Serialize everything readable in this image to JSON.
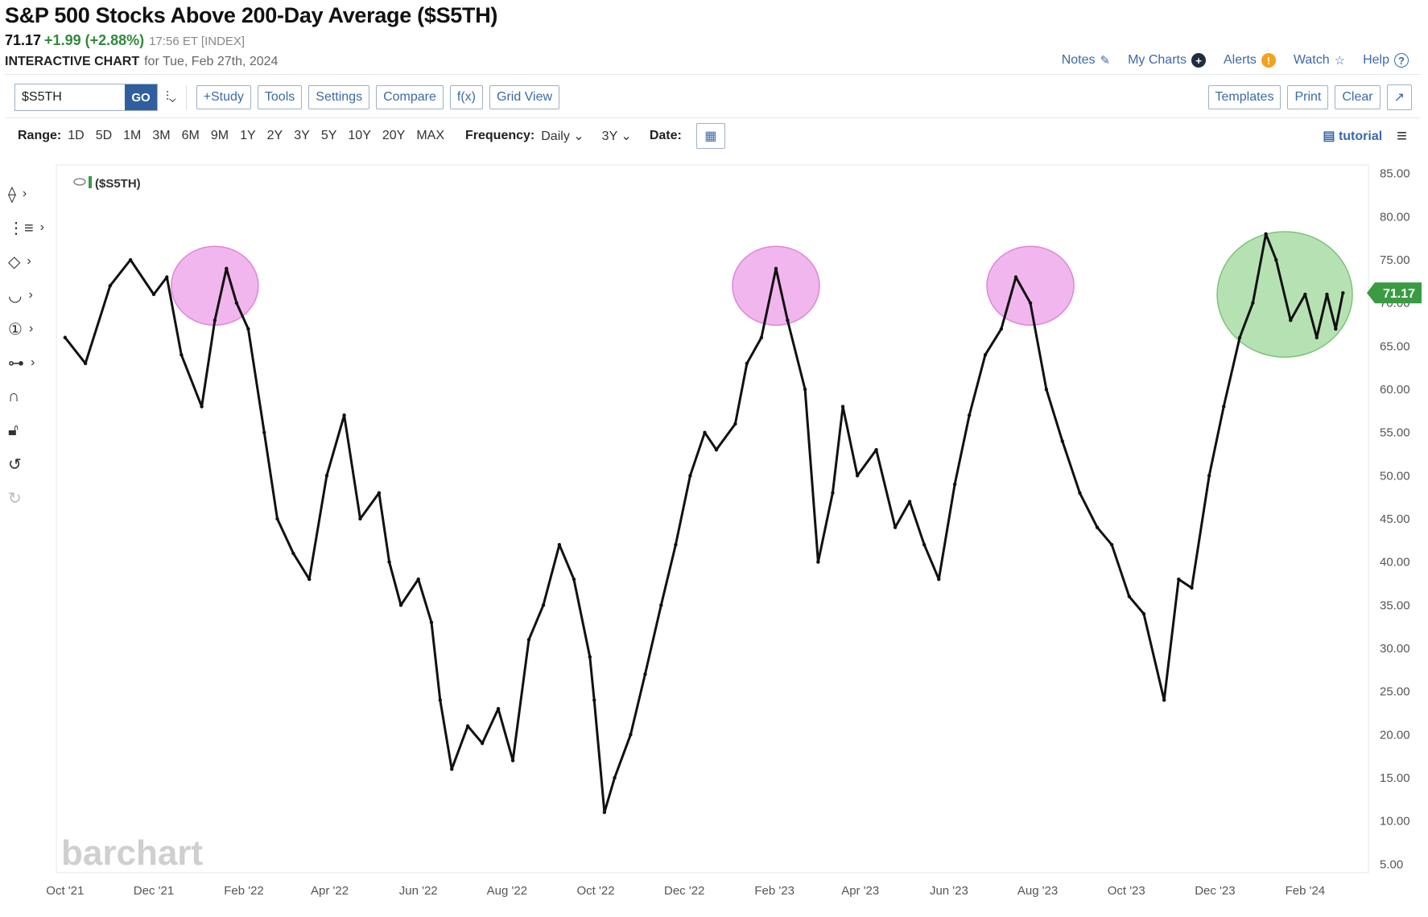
{
  "header": {
    "title": "S&P 500 Stocks Above 200-Day Average ($S5TH)",
    "last": "71.17",
    "change": "+1.99 (+2.88%)",
    "time": "17:56 ET [INDEX]",
    "subtitle_label": "INTERACTIVE CHART",
    "subtitle_date": "for Tue, Feb 27th, 2024"
  },
  "top_links": [
    {
      "label": "Notes",
      "icon": "pencil-icon"
    },
    {
      "label": "My Charts",
      "icon": "plus-circle-icon"
    },
    {
      "label": "Alerts",
      "icon": "alert-icon"
    },
    {
      "label": "Watch",
      "icon": "star-icon"
    },
    {
      "label": "Help",
      "icon": "question-icon"
    }
  ],
  "toolbar": {
    "symbol_value": "$S5TH",
    "go_label": "GO",
    "chart_type_icon": "candlestick-icon",
    "buttons_left": [
      "+Study",
      "Tools",
      "Settings",
      "Compare",
      "f(x)",
      "Grid View"
    ],
    "buttons_right": [
      "Templates",
      "Print",
      "Clear"
    ],
    "expand_icon": "expand-icon"
  },
  "range_bar": {
    "range_label": "Range:",
    "ranges": [
      "1D",
      "5D",
      "1M",
      "3M",
      "6M",
      "9M",
      "1Y",
      "2Y",
      "3Y",
      "5Y",
      "10Y",
      "20Y",
      "MAX"
    ],
    "frequency_label": "Frequency:",
    "frequency_value": "Daily",
    "period_value": "3Y",
    "date_label": "Date:",
    "tutorial_label": "tutorial"
  },
  "left_tools": [
    "crosshair-icon",
    "trendline-icon",
    "shapes-icon",
    "curve-icon",
    "counter-icon",
    "fib-icon",
    "magnet-icon",
    "lock-icon",
    "undo-icon",
    "redo-icon"
  ],
  "watermark": "barchart",
  "legend_label": "($S5TH)",
  "price_badge": "71.17",
  "colors": {
    "price": "#111111",
    "highlight_pink": "#ee9ee8",
    "highlight_green": "#9ed89a",
    "badge": "#3a9b43",
    "link": "#3b6aa8"
  },
  "chart_data": {
    "type": "line",
    "title": "S&P 500 Stocks Above 200-Day Average ($S5TH)",
    "series": [
      {
        "name": "$S5TH",
        "x": [
          "2021-10-01",
          "2021-10-15",
          "2021-11-01",
          "2021-11-15",
          "2021-12-01",
          "2021-12-10",
          "2021-12-20",
          "2022-01-03",
          "2022-01-12",
          "2022-01-20",
          "2022-01-27",
          "2022-02-04",
          "2022-02-15",
          "2022-02-24",
          "2022-03-07",
          "2022-03-18",
          "2022-03-30",
          "2022-04-11",
          "2022-04-22",
          "2022-05-05",
          "2022-05-12",
          "2022-05-20",
          "2022-06-01",
          "2022-06-10",
          "2022-06-16",
          "2022-06-24",
          "2022-07-05",
          "2022-07-15",
          "2022-07-26",
          "2022-08-05",
          "2022-08-16",
          "2022-08-26",
          "2022-09-06",
          "2022-09-16",
          "2022-09-27",
          "2022-09-30",
          "2022-10-07",
          "2022-10-14",
          "2022-10-25",
          "2022-11-04",
          "2022-11-15",
          "2022-11-25",
          "2022-12-05",
          "2022-12-15",
          "2022-12-23",
          "2023-01-05",
          "2023-01-13",
          "2023-01-23",
          "2023-02-02",
          "2023-02-10",
          "2023-02-22",
          "2023-03-03",
          "2023-03-13",
          "2023-03-20",
          "2023-03-30",
          "2023-04-12",
          "2023-04-25",
          "2023-05-05",
          "2023-05-15",
          "2023-05-25",
          "2023-06-05",
          "2023-06-15",
          "2023-06-26",
          "2023-07-07",
          "2023-07-17",
          "2023-07-27",
          "2023-08-07",
          "2023-08-18",
          "2023-08-30",
          "2023-09-11",
          "2023-09-21",
          "2023-10-03",
          "2023-10-13",
          "2023-10-27",
          "2023-11-06",
          "2023-11-15",
          "2023-11-27",
          "2023-12-07",
          "2023-12-18",
          "2023-12-27",
          "2024-01-05",
          "2024-01-12",
          "2024-01-22",
          "2024-02-01",
          "2024-02-09",
          "2024-02-16",
          "2024-02-22",
          "2024-02-27"
        ],
        "values": [
          66,
          63,
          72,
          75,
          71,
          73,
          64,
          58,
          68,
          74,
          70,
          67,
          55,
          45,
          41,
          38,
          50,
          57,
          45,
          48,
          40,
          35,
          38,
          33,
          24,
          16,
          21,
          19,
          23,
          17,
          31,
          35,
          42,
          38,
          29,
          24,
          11,
          15,
          20,
          27,
          35,
          42,
          50,
          55,
          53,
          56,
          63,
          66,
          74,
          68,
          60,
          40,
          48,
          58,
          50,
          53,
          44,
          47,
          42,
          38,
          49,
          57,
          64,
          67,
          73,
          70,
          60,
          54,
          48,
          44,
          42,
          36,
          34,
          24,
          38,
          37,
          50,
          58,
          66,
          70,
          78,
          75,
          68,
          71,
          66,
          71,
          67,
          71.17
        ]
      }
    ],
    "xlabel": "",
    "ylabel": "",
    "x_tick_labels": [
      "Oct '21",
      "Dec '21",
      "Feb '22",
      "Apr '22",
      "Jun '22",
      "Aug '22",
      "Oct '22",
      "Dec '22",
      "Feb '23",
      "Apr '23",
      "Jun '23",
      "Aug '23",
      "Oct '23",
      "Dec '23",
      "Feb '24"
    ],
    "y_ticks": [
      5,
      10,
      15,
      20,
      25,
      30,
      35,
      40,
      45,
      50,
      55,
      60,
      65,
      70,
      75,
      80,
      85
    ],
    "ylim": [
      4,
      86
    ],
    "xlim": [
      "2021-09-25",
      "2024-03-10"
    ],
    "grid": false,
    "y_axis_position": "right",
    "highlights": [
      {
        "shape": "ellipse",
        "color": "pink",
        "x_center": "2022-01-12",
        "y_center": 72
      },
      {
        "shape": "ellipse",
        "color": "pink",
        "x_center": "2023-02-02",
        "y_center": 72
      },
      {
        "shape": "ellipse",
        "color": "pink",
        "x_center": "2023-07-27",
        "y_center": 72
      },
      {
        "shape": "ellipse",
        "color": "green",
        "x_center": "2024-01-18",
        "y_center": 71
      }
    ]
  }
}
